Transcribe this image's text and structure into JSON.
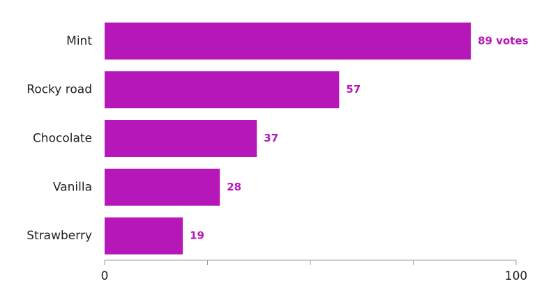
{
  "chart_data": {
    "type": "hbar",
    "categories": [
      "Mint",
      "Rocky road",
      "Chocolate",
      "Vanilla",
      "Strawberry"
    ],
    "values": [
      89,
      57,
      37,
      28,
      19
    ],
    "value_labels": [
      "89 votes",
      "57",
      "37",
      "28",
      "19"
    ],
    "color": "#b517b8",
    "xlim": [
      0,
      100
    ],
    "xticks": [
      0,
      100
    ],
    "minor_xticks": [
      25,
      50,
      75
    ]
  }
}
